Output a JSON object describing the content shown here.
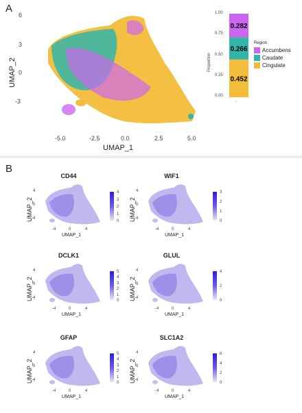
{
  "panel_a": {
    "letter": "A",
    "xlabel": "UMAP_1",
    "ylabel": "UMAP_2",
    "xticks": [
      "-5.0",
      "-2.5",
      "0.0",
      "2.5",
      "5.0"
    ],
    "yticks": [
      "6",
      "3",
      "0",
      "-3"
    ],
    "colors": {
      "Accumbens": "#cc66ee",
      "Caudate": "#33b5aa",
      "Cingulate": "#f3bd3a"
    }
  },
  "bar": {
    "ylabel": "Proportion",
    "yticks": [
      "1.00",
      "0.75",
      "0.50",
      "0.25",
      "0.00"
    ],
    "xlabel": "-",
    "legend_title": "Region",
    "legend": [
      {
        "name": "Accumbens",
        "color": "#cc66ee"
      },
      {
        "name": "Caudate",
        "color": "#33b5aa"
      },
      {
        "name": "Cingulate",
        "color": "#f3bd3a"
      }
    ]
  },
  "chart_data": {
    "type": "bar",
    "categories": [
      "-"
    ],
    "series": [
      {
        "name": "Cingulate",
        "values": [
          0.452
        ]
      },
      {
        "name": "Caudate",
        "values": [
          0.266
        ]
      },
      {
        "name": "Accumbens",
        "values": [
          0.282
        ]
      }
    ],
    "ylabel": "Proportion",
    "ylim": [
      0,
      1
    ],
    "stacked": true
  },
  "panel_b": {
    "letter": "B",
    "xlabel": "UMAP_1",
    "ylabel": "UMAP_2",
    "xticks": [
      "-4",
      "0",
      "4"
    ],
    "yticks": [
      "4",
      "0",
      "-4"
    ],
    "plots": [
      {
        "gene": "CD44",
        "cbar": [
          "4",
          "3",
          "2",
          "1",
          "0"
        ]
      },
      {
        "gene": "WIF1",
        "cbar": [
          "3",
          "2",
          "1",
          "0"
        ]
      },
      {
        "gene": "DCLK1",
        "cbar": [
          "5",
          "4",
          "3",
          "2",
          "1",
          "0"
        ]
      },
      {
        "gene": "GLUL",
        "cbar": [
          "4",
          "2",
          "0"
        ]
      },
      {
        "gene": "GFAP",
        "cbar": [
          "5",
          "4",
          "3",
          "2",
          "1",
          "0"
        ]
      },
      {
        "gene": "SLC1A2",
        "cbar": [
          "6",
          "4",
          "2",
          "0"
        ]
      }
    ]
  }
}
